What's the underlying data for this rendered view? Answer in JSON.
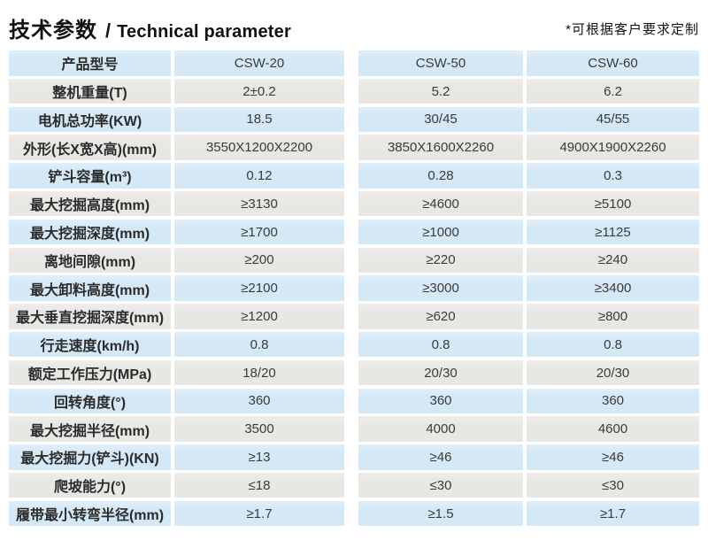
{
  "header": {
    "title_zh": "技术参数",
    "title_divider": "/",
    "title_en": "Technical parameter",
    "note": "*可根据客户要求定制"
  },
  "colors": {
    "row_blue": "#d5e8f6",
    "row_grey": "#e8e7e4",
    "label_text": "#2b2b2b",
    "value_text": "#3b3b3b"
  },
  "table": {
    "models": [
      "CSW-20",
      "CSW-50",
      "CSW-60"
    ],
    "rows": [
      {
        "label": "产品型号",
        "values": [
          "CSW-20",
          "CSW-50",
          "CSW-60"
        ]
      },
      {
        "label": "整机重量(T)",
        "values": [
          "2±0.2",
          "5.2",
          "6.2"
        ]
      },
      {
        "label": "电机总功率(KW)",
        "values": [
          "18.5",
          "30/45",
          "45/55"
        ]
      },
      {
        "label": "外形(长X宽X高)(mm)",
        "values": [
          "3550X1200X2200",
          "3850X1600X2260",
          "4900X1900X2260"
        ]
      },
      {
        "label": "铲斗容量(m³)",
        "values": [
          "0.12",
          "0.28",
          "0.3"
        ]
      },
      {
        "label": "最大挖掘高度(mm)",
        "values": [
          "≥3130",
          "≥4600",
          "≥5100"
        ]
      },
      {
        "label": "最大挖掘深度(mm)",
        "values": [
          "≥1700",
          "≥1000",
          "≥1125"
        ]
      },
      {
        "label": "离地间隙(mm)",
        "values": [
          "≥200",
          "≥220",
          "≥240"
        ]
      },
      {
        "label": "最大卸料高度(mm)",
        "values": [
          "≥2100",
          "≥3000",
          "≥3400"
        ]
      },
      {
        "label": "最大垂直挖掘深度(mm)",
        "values": [
          "≥1200",
          "≥620",
          "≥800"
        ]
      },
      {
        "label": "行走速度(km/h)",
        "values": [
          "0.8",
          "0.8",
          "0.8"
        ]
      },
      {
        "label": "额定工作压力(MPa)",
        "values": [
          "18/20",
          "20/30",
          "20/30"
        ]
      },
      {
        "label": "回转角度(°)",
        "values": [
          "360",
          "360",
          "360"
        ]
      },
      {
        "label": "最大挖掘半径(mm)",
        "values": [
          "3500",
          "4000",
          "4600"
        ]
      },
      {
        "label": "最大挖掘力(铲斗)(KN)",
        "values": [
          "≥13",
          "≥46",
          "≥46"
        ]
      },
      {
        "label": "爬坡能力(°)",
        "values": [
          "≤18",
          "≤30",
          "≤30"
        ]
      },
      {
        "label": "履带最小转弯半径(mm)",
        "values": [
          "≥1.7",
          "≥1.5",
          "≥1.7"
        ]
      }
    ]
  }
}
